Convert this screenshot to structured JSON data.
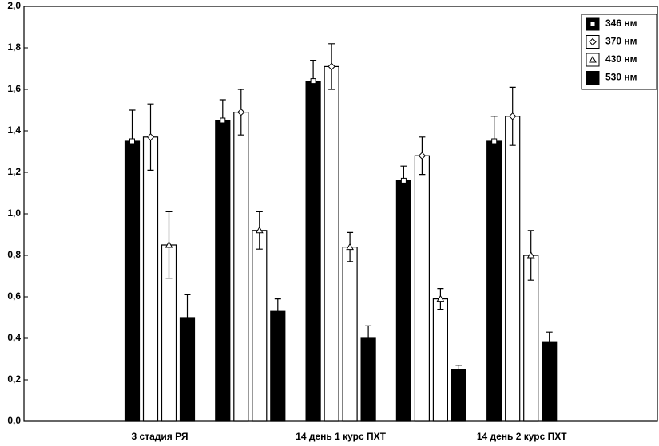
{
  "chart_data": {
    "type": "bar",
    "categories": [
      "3 стадия РЯ",
      null,
      "14 день 1 курс ПХТ",
      null,
      "14 день 2 курс ПХТ"
    ],
    "series": [
      {
        "name": "346 нм",
        "color": "#000000",
        "marker": "square",
        "values": [
          1.35,
          1.45,
          1.64,
          1.16,
          1.35
        ],
        "errors": [
          0.15,
          0.1,
          0.1,
          0.07,
          0.12
        ]
      },
      {
        "name": "370 нм",
        "color": "#ffffff",
        "marker": "diamond",
        "values": [
          1.37,
          1.49,
          1.71,
          1.28,
          1.47
        ],
        "errors": [
          0.16,
          0.11,
          0.11,
          0.09,
          0.14
        ]
      },
      {
        "name": "430 нм",
        "color": "#ffffff",
        "marker": "triangle",
        "values": [
          0.85,
          0.92,
          0.84,
          0.59,
          0.8
        ],
        "errors": [
          0.16,
          0.09,
          0.07,
          0.05,
          0.12
        ]
      },
      {
        "name": "530 нм",
        "color": "#000000",
        "values": [
          0.5,
          0.53,
          0.4,
          0.25,
          0.38
        ],
        "errors": [
          0.11,
          0.06,
          0.06,
          0.02,
          0.05
        ]
      }
    ],
    "ylim": [
      0,
      2.0
    ],
    "yticks": [
      {
        "value": 0,
        "label": "0,0"
      },
      {
        "value": 0.2,
        "label": "0,2"
      },
      {
        "value": 0.4,
        "label": "0,4"
      },
      {
        "value": 0.6,
        "label": "0,6"
      },
      {
        "value": 0.8,
        "label": "0,8"
      },
      {
        "value": 1.0,
        "label": "1,0"
      },
      {
        "value": 1.2,
        "label": "1,2"
      },
      {
        "value": 1.4,
        "label": "1,4"
      },
      {
        "value": 1.6,
        "label": "1,6"
      },
      {
        "value": 1.8,
        "label": "1,8"
      },
      {
        "value": 2.0,
        "label": "2,0"
      }
    ],
    "legend": "upper right"
  }
}
